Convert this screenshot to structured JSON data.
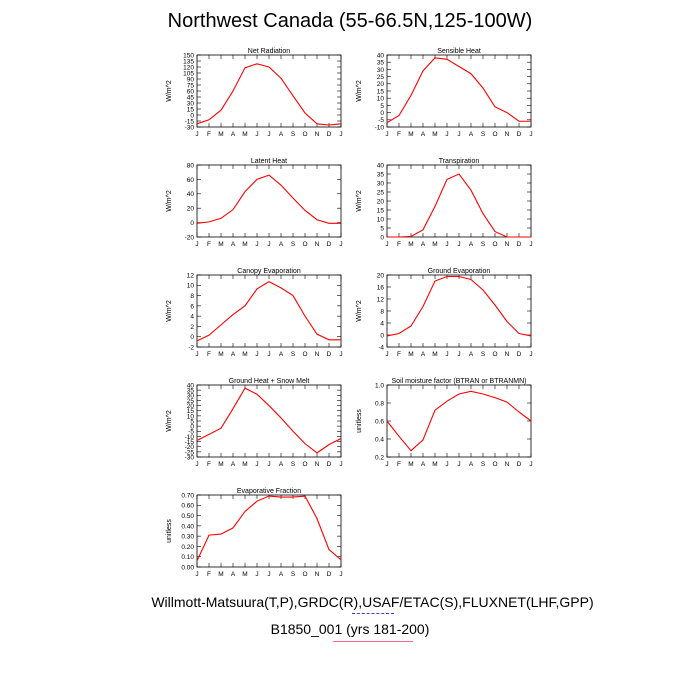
{
  "title": "Northwest Canada (55-66.5N,125-100W)",
  "footer": {
    "sources": "Willmott-Matsuura(T,P),GRDC(R),USAF/ETAC(S),FLUXNET(LHF,GPP)",
    "case": "B1850_001 (yrs 181-200)"
  },
  "colors": {
    "line": "#ff0000",
    "accent_blue": "#3344cc",
    "accent_pink": "#ff6688"
  },
  "months": [
    "J",
    "F",
    "M",
    "A",
    "M",
    "J",
    "J",
    "A",
    "S",
    "O",
    "N",
    "D",
    "J"
  ],
  "chart_data": [
    {
      "type": "line",
      "title": "Net Radiation",
      "ylabel": "W/m^2",
      "ylim": [
        -30,
        150
      ],
      "yticks": [
        -30,
        -15,
        0,
        15,
        30,
        45,
        60,
        75,
        90,
        105,
        120,
        135,
        150
      ],
      "ytick_labels": [
        "-30",
        "-15",
        "0",
        "15",
        "30",
        "45",
        "60",
        "75",
        "90",
        "105",
        "120",
        "135",
        "150"
      ],
      "categories": [
        "J",
        "F",
        "M",
        "A",
        "M",
        "J",
        "J",
        "A",
        "S",
        "O",
        "N",
        "D",
        "J"
      ],
      "values": [
        -22,
        -12,
        12,
        60,
        118,
        128,
        120,
        92,
        48,
        5,
        -22,
        -25,
        -22
      ]
    },
    {
      "type": "line",
      "title": "Sensible Heat",
      "ylabel": "W/m^2",
      "ylim": [
        -10,
        40
      ],
      "yticks": [
        -10,
        -5,
        0,
        5,
        10,
        15,
        20,
        25,
        30,
        35,
        40
      ],
      "ytick_labels": [
        "-10",
        "-5",
        "0",
        "5",
        "10",
        "15",
        "20",
        "25",
        "30",
        "35",
        "40"
      ],
      "categories": [
        "J",
        "F",
        "M",
        "A",
        "M",
        "J",
        "J",
        "A",
        "S",
        "O",
        "N",
        "D",
        "J"
      ],
      "values": [
        -7,
        -2,
        12,
        29,
        38,
        37,
        32,
        27,
        17,
        4,
        0,
        -6,
        -6
      ]
    },
    {
      "type": "line",
      "title": "Latent Heat",
      "ylabel": "W/m^2",
      "ylim": [
        -20,
        80
      ],
      "yticks": [
        -20,
        0,
        20,
        40,
        60,
        80
      ],
      "ytick_labels": [
        "-20",
        "0",
        "20",
        "40",
        "60",
        "80"
      ],
      "categories": [
        "J",
        "F",
        "M",
        "A",
        "M",
        "J",
        "J",
        "A",
        "S",
        "O",
        "N",
        "D",
        "J"
      ],
      "values": [
        -1,
        1,
        6,
        18,
        43,
        60,
        66,
        52,
        34,
        17,
        4,
        -1,
        -1
      ]
    },
    {
      "type": "line",
      "title": "Transpiration",
      "ylabel": "W/m^2",
      "ylim": [
        0,
        40
      ],
      "yticks": [
        0,
        5,
        10,
        15,
        20,
        25,
        30,
        35,
        40
      ],
      "ytick_labels": [
        "0",
        "5",
        "10",
        "15",
        "20",
        "25",
        "30",
        "35",
        "40"
      ],
      "categories": [
        "J",
        "F",
        "M",
        "A",
        "M",
        "J",
        "J",
        "A",
        "S",
        "O",
        "N",
        "D",
        "J"
      ],
      "values": [
        0,
        0,
        0.3,
        4,
        17,
        32,
        35,
        26,
        13,
        3,
        0,
        0,
        0
      ]
    },
    {
      "type": "line",
      "title": "Canopy Evaporation",
      "ylabel": "W/m^2",
      "ylim": [
        -2,
        12
      ],
      "yticks": [
        -2,
        0,
        2,
        4,
        6,
        8,
        10,
        12
      ],
      "ytick_labels": [
        "-2",
        "0",
        "2",
        "4",
        "6",
        "8",
        "10",
        "12"
      ],
      "categories": [
        "J",
        "F",
        "M",
        "A",
        "M",
        "J",
        "J",
        "A",
        "S",
        "O",
        "N",
        "D",
        "J"
      ],
      "values": [
        -0.8,
        0.3,
        2.3,
        4.3,
        6,
        9.3,
        10.7,
        9.5,
        8,
        4,
        0.5,
        -0.6,
        -0.6
      ]
    },
    {
      "type": "line",
      "title": "Ground Evaporation",
      "ylabel": "W/m^2",
      "ylim": [
        -4,
        20
      ],
      "yticks": [
        -4,
        0,
        4,
        8,
        12,
        16,
        20
      ],
      "ytick_labels": [
        "-4",
        "0",
        "4",
        "8",
        "12",
        "16",
        "20"
      ],
      "categories": [
        "J",
        "F",
        "M",
        "A",
        "M",
        "J",
        "J",
        "A",
        "S",
        "O",
        "N",
        "D",
        "J"
      ],
      "values": [
        -0.3,
        0.5,
        3,
        9.5,
        18,
        19.5,
        19.5,
        18.5,
        15,
        10,
        4.5,
        0.5,
        -0.3
      ]
    },
    {
      "type": "line",
      "title": "Ground Heat + Snow Melt",
      "ylabel": "W/m^2",
      "ylim": [
        -30,
        40
      ],
      "yticks": [
        -30,
        -25,
        -20,
        -15,
        -10,
        -5,
        0,
        5,
        10,
        15,
        20,
        25,
        30,
        35,
        40
      ],
      "ytick_labels": [
        "-30",
        "-25",
        "-20",
        "-15",
        "-10",
        "-5",
        "0",
        "5",
        "10",
        "15",
        "20",
        "25",
        "30",
        "35",
        "40"
      ],
      "categories": [
        "J",
        "F",
        "M",
        "A",
        "M",
        "J",
        "J",
        "A",
        "S",
        "O",
        "N",
        "D",
        "J"
      ],
      "values": [
        -14,
        -8,
        -2,
        17,
        37,
        31,
        20,
        8,
        -5,
        -17,
        -26,
        -18,
        -12
      ]
    },
    {
      "type": "line",
      "title": "Soil moisture factor (BTRAN or BTRANMN)",
      "ylabel": "unitless",
      "ylim": [
        0.2,
        1.0
      ],
      "yticks": [
        0.2,
        0.4,
        0.6,
        0.8,
        1.0
      ],
      "ytick_labels": [
        "0.2",
        "0.4",
        "0.6",
        "0.8",
        "1.0"
      ],
      "categories": [
        "J",
        "F",
        "M",
        "A",
        "M",
        "J",
        "J",
        "A",
        "S",
        "O",
        "N",
        "D",
        "J"
      ],
      "values": [
        0.6,
        0.43,
        0.27,
        0.39,
        0.72,
        0.82,
        0.9,
        0.93,
        0.9,
        0.86,
        0.81,
        0.7,
        0.6
      ]
    },
    {
      "type": "line",
      "title": "Evaporative Fraction",
      "ylabel": "unitless",
      "ylim": [
        0,
        0.7
      ],
      "yticks": [
        0,
        0.1,
        0.2,
        0.3,
        0.4,
        0.5,
        0.6,
        0.7
      ],
      "ytick_labels": [
        "0.00",
        "0.10",
        "0.20",
        "0.30",
        "0.40",
        "0.50",
        "0.60",
        "0.70"
      ],
      "categories": [
        "J",
        "F",
        "M",
        "A",
        "M",
        "J",
        "J",
        "A",
        "S",
        "O",
        "N",
        "D",
        "J"
      ],
      "values": [
        0.06,
        0.31,
        0.32,
        0.38,
        0.54,
        0.64,
        0.69,
        0.68,
        0.68,
        0.69,
        0.47,
        0.17,
        0.07
      ]
    }
  ]
}
